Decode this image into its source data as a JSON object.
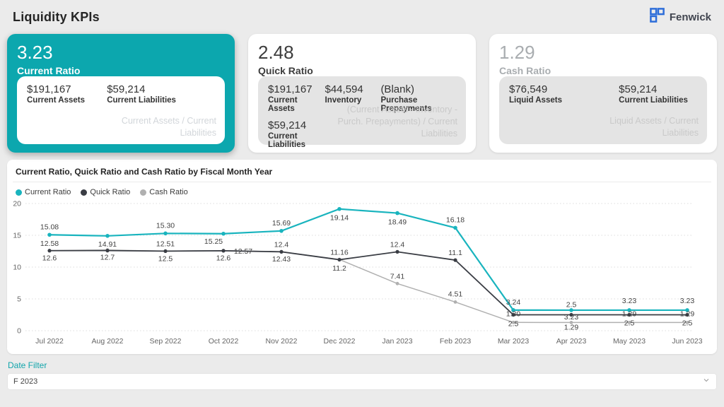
{
  "header": {
    "title": "Liquidity KPIs",
    "logo_text": "Fenwick"
  },
  "colors": {
    "accent_teal": "#0ca7ae",
    "series_current": "#19b4be",
    "series_quick": "#3a3d44",
    "series_cash": "#b0b0b0",
    "filter_label": "#12a5ab",
    "logo_blue": "#2e6ed9"
  },
  "cards": [
    {
      "value": "3.23",
      "label": "Current Ratio",
      "details": [
        {
          "value": "$191,167",
          "label": "Current Assets"
        },
        {
          "value": "$59,214",
          "label": "Current Liabilities"
        }
      ],
      "formula": "Current Assets / Current Liabilities"
    },
    {
      "value": "2.48",
      "label": "Quick Ratio",
      "details": [
        {
          "value": "$191,167",
          "label": "Current Assets"
        },
        {
          "value": "$44,594",
          "label": "Inventory"
        },
        {
          "value": "(Blank)",
          "label": "Purchase Prepayments"
        },
        {
          "value": "$59,214",
          "label": "Current Liabilities"
        }
      ],
      "formula": "(Current Assets - Inventory - Purch. Prepayments) / Current Liabilities"
    },
    {
      "value": "1.29",
      "label": "Cash Ratio",
      "details": [
        {
          "value": "$76,549",
          "label": "Liquid Assets"
        },
        {
          "value": "$59,214",
          "label": "Current Liabilities"
        }
      ],
      "formula": "Liquid Assets / Current Liabilities"
    }
  ],
  "chart_data": {
    "type": "line",
    "title": "Current Ratio, Quick Ratio and Cash Ratio by Fiscal Month Year",
    "categories": [
      "Jul 2022",
      "Aug 2022",
      "Sep 2022",
      "Oct 2022",
      "Nov 2022",
      "Dec 2022",
      "Jan 2023",
      "Feb 2023",
      "Mar 2023",
      "Apr 2023",
      "May 2023",
      "Jun 2023"
    ],
    "series": [
      {
        "name": "Current Ratio",
        "color": "#19b4be",
        "values": [
          15.08,
          14.91,
          15.3,
          15.25,
          15.69,
          19.14,
          18.49,
          16.18,
          3.24,
          3.23,
          3.23,
          3.23
        ],
        "labels": [
          "15.08",
          "14.91",
          "15.30",
          "15.25",
          "15.69",
          "19.14",
          "18.49",
          "16.18",
          "3.24",
          "3.23",
          "3.23",
          "3.23"
        ]
      },
      {
        "name": "Quick Ratio",
        "color": "#3a3d44",
        "values": [
          12.58,
          12.6,
          12.51,
          12.57,
          12.4,
          11.16,
          12.4,
          11.1,
          2.5,
          2.5,
          2.5,
          2.5
        ],
        "labels": [
          "12.58",
          "",
          "12.51",
          "12.57",
          "12.4",
          "11.16",
          "12.4",
          "11.1",
          "2.5",
          "2.5",
          "2.5",
          "2.5"
        ]
      },
      {
        "name": "Cash Ratio",
        "color": "#b0b0b0",
        "values": [
          12.6,
          12.7,
          12.5,
          12.6,
          12.43,
          11.2,
          7.41,
          4.51,
          1.3,
          1.29,
          1.29,
          1.29
        ],
        "labels": [
          "12.6",
          "12.7",
          "12.5",
          "12.6",
          "12.43",
          "11.2",
          "7.41",
          "4.51",
          "1.30",
          "1.29",
          "1.29",
          "1.29"
        ]
      }
    ],
    "ylim": [
      0,
      20
    ],
    "yticks": [
      0,
      5,
      10,
      15,
      20
    ],
    "xlabel": "Fiscal Month Year",
    "ylabel": "",
    "grid": "dotted-horizontal",
    "legend_position": "top-left"
  },
  "filter": {
    "label": "Date Filter",
    "value": "F 2023"
  }
}
